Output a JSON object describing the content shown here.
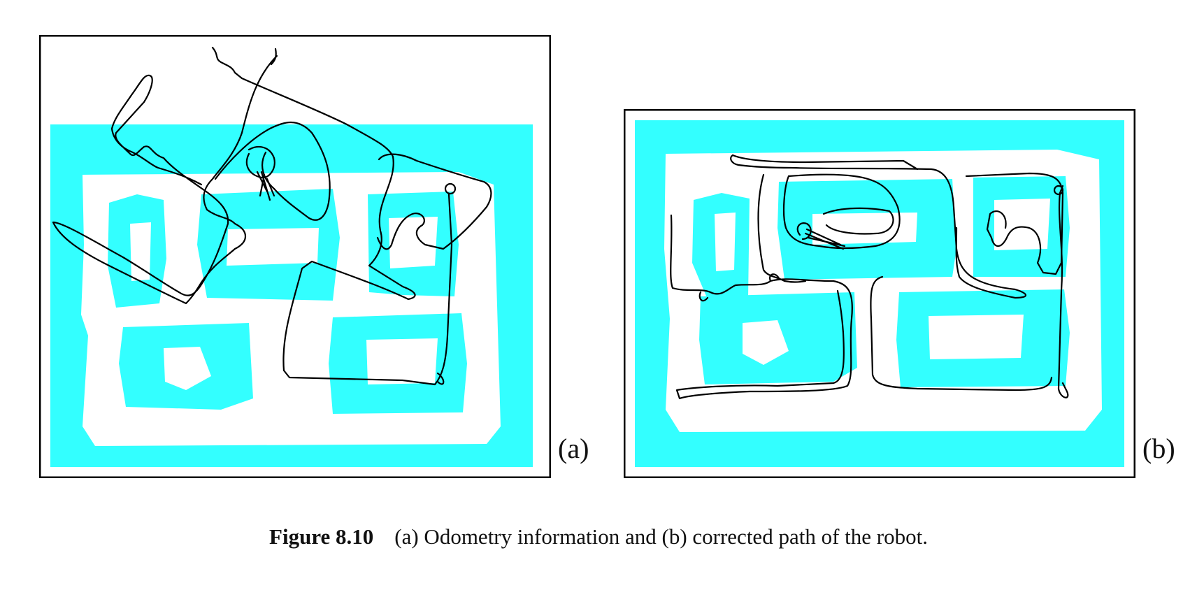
{
  "figure": {
    "number_label": "Figure 8.10",
    "caption_text": "(a) Odometry information and (b) corrected path of the robot."
  },
  "panels": [
    {
      "label": "(a)",
      "map_color": "#33FFFF",
      "path_color": "#000000"
    },
    {
      "label": "(b)",
      "map_color": "#33FFFF",
      "path_color": "#000000"
    }
  ]
}
